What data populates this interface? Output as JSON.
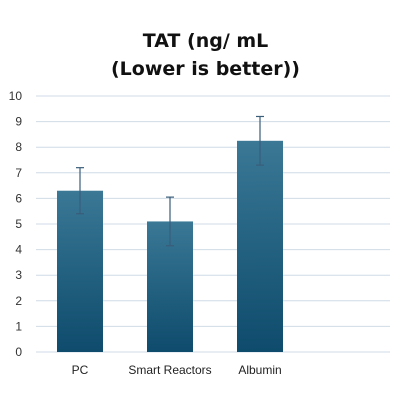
{
  "chart_data": {
    "type": "bar",
    "title_line1": "TAT (ng/ mL",
    "title_line2": "(Lower is better))",
    "xlabel": "",
    "ylabel": "",
    "categories": [
      "PC",
      "Smart Reactors",
      "Albumin"
    ],
    "values": [
      6.3,
      5.1,
      8.25
    ],
    "error": [
      0.9,
      0.95,
      0.95
    ],
    "ylim": [
      0,
      10
    ],
    "yticks": [
      0,
      1,
      2,
      3,
      4,
      5,
      6,
      7,
      8,
      9,
      10
    ],
    "grid": true,
    "legend": "none",
    "bar_color_top": "#3a7896",
    "bar_color_bottom": "#0e4b6c",
    "grid_color": "#cfdbe6",
    "error_color": "#3a5d7a"
  }
}
